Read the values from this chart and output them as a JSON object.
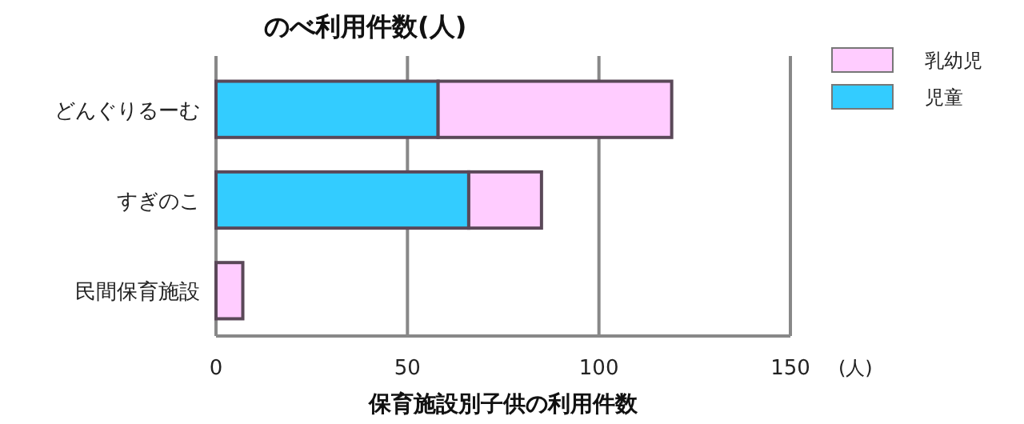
{
  "chart_data": {
    "type": "bar",
    "orientation": "horizontal",
    "stacked": true,
    "title": "のべ利用件数(人)",
    "xlabel": "保育施設別子供の利用件数",
    "categories": [
      "どんぐりるーむ",
      "すぎのこ",
      "民間保育施設"
    ],
    "series": [
      {
        "name": "児童",
        "color": "#33ccff",
        "values": [
          58,
          66,
          0
        ]
      },
      {
        "name": "乳幼児",
        "color": "#ffccff",
        "values": [
          61,
          19,
          7
        ]
      }
    ],
    "xlim": [
      0,
      150
    ],
    "xticks": [
      0,
      50,
      100,
      150
    ],
    "grid": "x",
    "legend": "top right",
    "annotations": [
      "(人)"
    ]
  }
}
